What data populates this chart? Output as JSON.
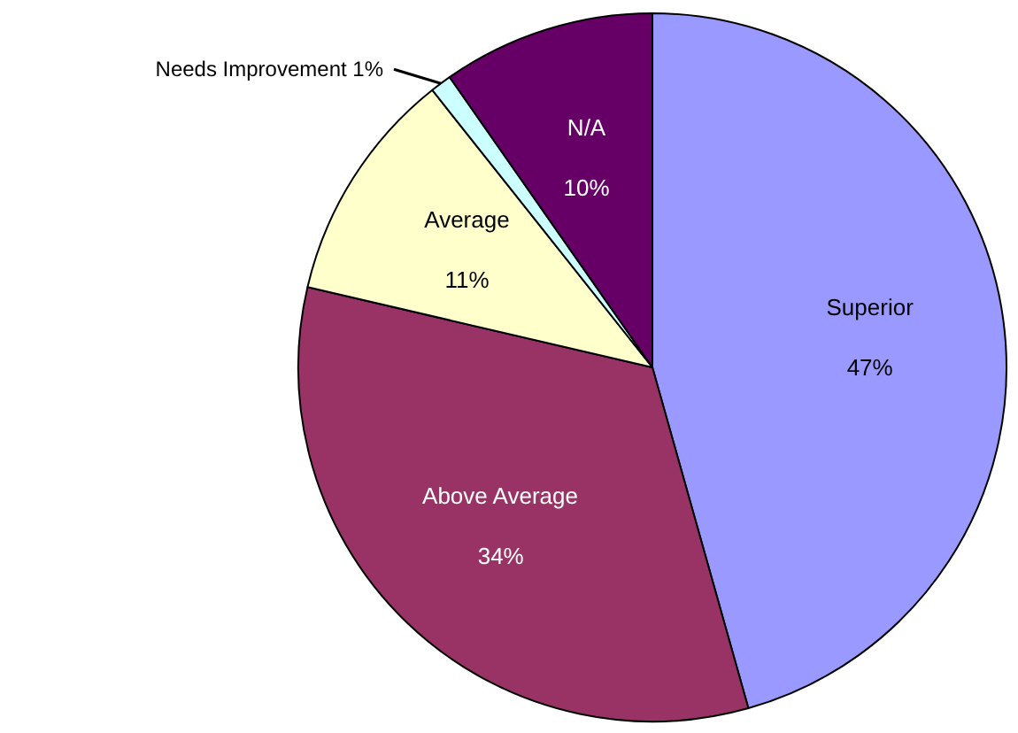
{
  "chart_data": {
    "type": "pie",
    "categories": [
      "Superior",
      "Above Average",
      "Average",
      "Needs Improvement",
      "N/A"
    ],
    "values": [
      47,
      34,
      11,
      1,
      10
    ],
    "value_labels": [
      "47%",
      "34%",
      "11%",
      "1%",
      "10%"
    ],
    "colors": [
      "#9999ff",
      "#993366",
      "#ffffcc",
      "#ccffff",
      "#660066"
    ]
  }
}
